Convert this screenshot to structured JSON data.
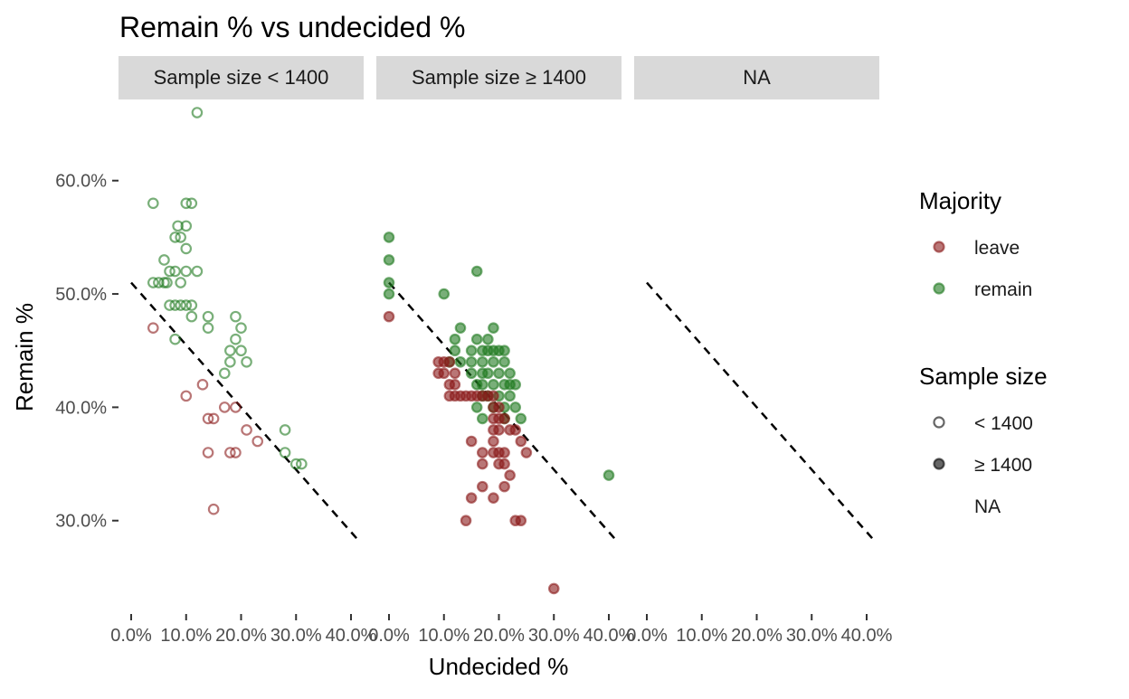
{
  "chart_data": {
    "type": "scatter",
    "title": "Remain % vs undecided %",
    "xlabel": "Undecided %",
    "ylabel": "Remain %",
    "xlim": [
      0,
      0.4
    ],
    "ylim": [
      0.22,
      0.67
    ],
    "x_ticks": [
      0,
      0.1,
      0.2,
      0.3,
      0.4
    ],
    "x_tick_labels": [
      "0.0%",
      "10.0%",
      "20.0%",
      "30.0%",
      "40.0%"
    ],
    "y_ticks": [
      0.3,
      0.4,
      0.5,
      0.6
    ],
    "y_tick_labels": [
      "30.0%",
      "40.0%",
      "50.0%",
      "60.0%"
    ],
    "grid": false,
    "reference_line": {
      "style": "dashed",
      "intercept": 0.51,
      "slope": -0.55,
      "x_end": 0.41
    },
    "colors": {
      "leave": "#8b1a1a",
      "remain": "#1f7a1f"
    },
    "panels": [
      {
        "label": "Sample size < 1400",
        "fill": "none",
        "series": [
          {
            "name": "remain",
            "points": [
              [
                0.04,
                0.58
              ],
              [
                0.04,
                0.51
              ],
              [
                0.05,
                0.51
              ],
              [
                0.06,
                0.51
              ],
              [
                0.06,
                0.53
              ],
              [
                0.065,
                0.51
              ],
              [
                0.07,
                0.52
              ],
              [
                0.08,
                0.52
              ],
              [
                0.07,
                0.49
              ],
              [
                0.08,
                0.49
              ],
              [
                0.09,
                0.49
              ],
              [
                0.1,
                0.49
              ],
              [
                0.11,
                0.49
              ],
              [
                0.11,
                0.48
              ],
              [
                0.08,
                0.46
              ],
              [
                0.08,
                0.55
              ],
              [
                0.085,
                0.56
              ],
              [
                0.09,
                0.55
              ],
              [
                0.1,
                0.56
              ],
              [
                0.1,
                0.54
              ],
              [
                0.09,
                0.51
              ],
              [
                0.1,
                0.52
              ],
              [
                0.1,
                0.58
              ],
              [
                0.11,
                0.58
              ],
              [
                0.12,
                0.52
              ],
              [
                0.12,
                0.66
              ],
              [
                0.14,
                0.48
              ],
              [
                0.14,
                0.47
              ],
              [
                0.17,
                0.43
              ],
              [
                0.18,
                0.45
              ],
              [
                0.18,
                0.44
              ],
              [
                0.19,
                0.46
              ],
              [
                0.19,
                0.48
              ],
              [
                0.2,
                0.47
              ],
              [
                0.2,
                0.45
              ],
              [
                0.21,
                0.44
              ],
              [
                0.28,
                0.38
              ],
              [
                0.28,
                0.36
              ],
              [
                0.3,
                0.35
              ],
              [
                0.31,
                0.35
              ]
            ]
          },
          {
            "name": "leave",
            "points": [
              [
                0.04,
                0.47
              ],
              [
                0.1,
                0.41
              ],
              [
                0.13,
                0.42
              ],
              [
                0.14,
                0.39
              ],
              [
                0.15,
                0.39
              ],
              [
                0.14,
                0.36
              ],
              [
                0.15,
                0.31
              ],
              [
                0.17,
                0.4
              ],
              [
                0.18,
                0.36
              ],
              [
                0.19,
                0.36
              ],
              [
                0.19,
                0.4
              ],
              [
                0.21,
                0.38
              ],
              [
                0.23,
                0.37
              ]
            ]
          }
        ]
      },
      {
        "label": "Sample size ≥ 1400",
        "fill": "solid",
        "series": [
          {
            "name": "remain",
            "points": [
              [
                0,
                0.55
              ],
              [
                0,
                0.53
              ],
              [
                0,
                0.51
              ],
              [
                0,
                0.5
              ],
              [
                0.1,
                0.5
              ],
              [
                0.16,
                0.52
              ],
              [
                0.13,
                0.47
              ],
              [
                0.19,
                0.47
              ],
              [
                0.12,
                0.46
              ],
              [
                0.16,
                0.46
              ],
              [
                0.18,
                0.46
              ],
              [
                0.12,
                0.45
              ],
              [
                0.15,
                0.45
              ],
              [
                0.17,
                0.45
              ],
              [
                0.18,
                0.45
              ],
              [
                0.19,
                0.45
              ],
              [
                0.2,
                0.45
              ],
              [
                0.21,
                0.45
              ],
              [
                0.11,
                0.44
              ],
              [
                0.13,
                0.44
              ],
              [
                0.15,
                0.44
              ],
              [
                0.17,
                0.44
              ],
              [
                0.19,
                0.44
              ],
              [
                0.21,
                0.44
              ],
              [
                0.15,
                0.43
              ],
              [
                0.17,
                0.43
              ],
              [
                0.18,
                0.43
              ],
              [
                0.2,
                0.43
              ],
              [
                0.22,
                0.43
              ],
              [
                0.16,
                0.42
              ],
              [
                0.17,
                0.42
              ],
              [
                0.19,
                0.42
              ],
              [
                0.21,
                0.42
              ],
              [
                0.22,
                0.42
              ],
              [
                0.23,
                0.42
              ],
              [
                0.17,
                0.41
              ],
              [
                0.18,
                0.41
              ],
              [
                0.2,
                0.41
              ],
              [
                0.22,
                0.41
              ],
              [
                0.16,
                0.4
              ],
              [
                0.19,
                0.4
              ],
              [
                0.21,
                0.4
              ],
              [
                0.23,
                0.4
              ],
              [
                0.17,
                0.39
              ],
              [
                0.21,
                0.39
              ],
              [
                0.24,
                0.39
              ],
              [
                0.4,
                0.34
              ]
            ]
          },
          {
            "name": "leave",
            "points": [
              [
                0,
                0.48
              ],
              [
                0.09,
                0.44
              ],
              [
                0.1,
                0.44
              ],
              [
                0.11,
                0.44
              ],
              [
                0.09,
                0.43
              ],
              [
                0.1,
                0.43
              ],
              [
                0.12,
                0.43
              ],
              [
                0.11,
                0.42
              ],
              [
                0.12,
                0.42
              ],
              [
                0.11,
                0.41
              ],
              [
                0.12,
                0.41
              ],
              [
                0.13,
                0.41
              ],
              [
                0.14,
                0.41
              ],
              [
                0.15,
                0.41
              ],
              [
                0.16,
                0.41
              ],
              [
                0.17,
                0.41
              ],
              [
                0.18,
                0.41
              ],
              [
                0.19,
                0.41
              ],
              [
                0.19,
                0.4
              ],
              [
                0.2,
                0.4
              ],
              [
                0.19,
                0.39
              ],
              [
                0.2,
                0.39
              ],
              [
                0.21,
                0.39
              ],
              [
                0.19,
                0.38
              ],
              [
                0.2,
                0.38
              ],
              [
                0.22,
                0.38
              ],
              [
                0.23,
                0.38
              ],
              [
                0.15,
                0.37
              ],
              [
                0.19,
                0.37
              ],
              [
                0.24,
                0.37
              ],
              [
                0.17,
                0.36
              ],
              [
                0.19,
                0.36
              ],
              [
                0.2,
                0.36
              ],
              [
                0.21,
                0.36
              ],
              [
                0.25,
                0.36
              ],
              [
                0.17,
                0.35
              ],
              [
                0.2,
                0.35
              ],
              [
                0.21,
                0.35
              ],
              [
                0.22,
                0.34
              ],
              [
                0.17,
                0.33
              ],
              [
                0.21,
                0.33
              ],
              [
                0.15,
                0.32
              ],
              [
                0.19,
                0.32
              ],
              [
                0.14,
                0.3
              ],
              [
                0.23,
                0.3
              ],
              [
                0.24,
                0.3
              ],
              [
                0.3,
                0.24
              ]
            ]
          }
        ]
      },
      {
        "label": "NA",
        "fill": "none",
        "series": []
      }
    ],
    "legends": [
      {
        "title": "Majority",
        "placement": "right",
        "items": [
          {
            "label": "leave",
            "color": "#8b1a1a",
            "fill": "solid"
          },
          {
            "label": "remain",
            "color": "#1f7a1f",
            "fill": "solid"
          }
        ]
      },
      {
        "title": "Sample size",
        "placement": "right",
        "items": [
          {
            "label": "< 1400",
            "color": "#000000",
            "fill": "none"
          },
          {
            "label": "≥ 1400",
            "color": "#000000",
            "fill": "solid"
          },
          {
            "label": "NA",
            "color": "",
            "fill": "blank"
          }
        ]
      }
    ]
  }
}
